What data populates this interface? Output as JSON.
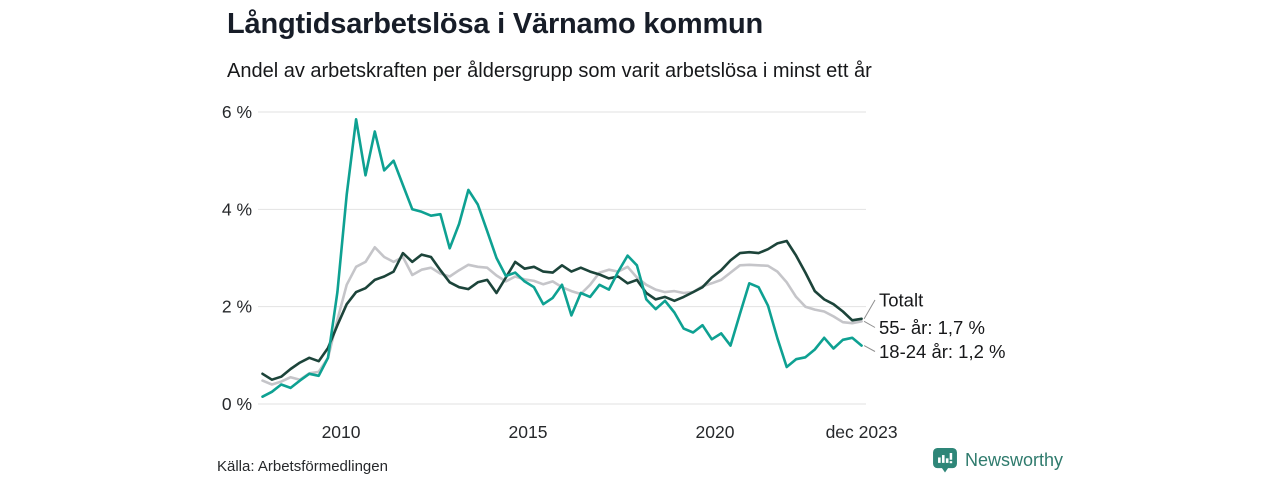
{
  "header": {
    "title": "Långtidsarbetslösa i Värnamo kommun",
    "subtitle": "Andel av arbetskraften per åldersgrupp som varit arbetslösa i minst ett år"
  },
  "footer": {
    "source": "Källa: Arbetsförmedlingen",
    "brand": "Newsworthy"
  },
  "colors": {
    "totalt": "#1c443a",
    "55_ar": "#c5c5c9",
    "18_24_ar": "#0ea192",
    "gridline": "#e2e2e2",
    "brand_teal": "#2e8678",
    "text": "#17181a"
  },
  "chart_data": {
    "type": "line",
    "title": "Långtidsarbetslösa i Värnamo kommun",
    "subtitle": "Andel av arbetskraften per åldersgrupp som varit arbetslösa i minst ett år",
    "x_start": 2007.9,
    "x_end": 2023.92,
    "ylim": [
      0,
      6
    ],
    "grid": "horizontal",
    "legend_position": "end-of-line-annotations",
    "yticks": [
      {
        "value": 0,
        "label": "0 %"
      },
      {
        "value": 2,
        "label": "2 %"
      },
      {
        "value": 4,
        "label": "4 %"
      },
      {
        "value": 6,
        "label": "6 %"
      }
    ],
    "xticks": [
      {
        "value": 2010,
        "label": "2010"
      },
      {
        "value": 2015,
        "label": "2015"
      },
      {
        "value": 2020,
        "label": "2020"
      },
      {
        "value": 2023.92,
        "label": "dec 2023"
      }
    ],
    "series": [
      {
        "name": "55- år",
        "color": "#c5c5c9",
        "values": [
          0.48,
          0.4,
          0.46,
          0.55,
          0.5,
          0.63,
          0.66,
          0.95,
          1.73,
          2.45,
          2.82,
          2.92,
          3.22,
          3.02,
          2.92,
          3.02,
          2.65,
          2.76,
          2.8,
          2.68,
          2.62,
          2.75,
          2.86,
          2.82,
          2.8,
          2.64,
          2.52,
          2.62,
          2.56,
          2.53,
          2.46,
          2.52,
          2.4,
          2.32,
          2.26,
          2.45,
          2.7,
          2.76,
          2.72,
          2.82,
          2.6,
          2.45,
          2.35,
          2.3,
          2.32,
          2.28,
          2.3,
          2.42,
          2.48,
          2.55,
          2.7,
          2.85,
          2.86,
          2.85,
          2.84,
          2.72,
          2.5,
          2.2,
          2.0,
          1.94,
          1.9,
          1.8,
          1.68,
          1.66,
          1.7
        ]
      },
      {
        "name": "Totalt",
        "color": "#1c443a",
        "values": [
          0.62,
          0.5,
          0.56,
          0.72,
          0.85,
          0.95,
          0.88,
          1.15,
          1.62,
          2.05,
          2.3,
          2.38,
          2.55,
          2.62,
          2.72,
          3.1,
          2.92,
          3.07,
          3.02,
          2.75,
          2.5,
          2.4,
          2.36,
          2.5,
          2.55,
          2.28,
          2.6,
          2.92,
          2.78,
          2.82,
          2.72,
          2.7,
          2.85,
          2.72,
          2.8,
          2.72,
          2.66,
          2.58,
          2.62,
          2.48,
          2.55,
          2.28,
          2.15,
          2.2,
          2.12,
          2.2,
          2.3,
          2.4,
          2.6,
          2.75,
          2.95,
          3.1,
          3.12,
          3.1,
          3.18,
          3.3,
          3.35,
          3.05,
          2.7,
          2.32,
          2.15,
          2.05,
          1.9,
          1.72,
          1.75
        ]
      },
      {
        "name": "18-24 år",
        "color": "#0ea192",
        "values": [
          0.15,
          0.25,
          0.4,
          0.33,
          0.48,
          0.62,
          0.58,
          0.95,
          2.3,
          4.3,
          5.85,
          4.7,
          5.6,
          4.8,
          5.0,
          4.5,
          4.0,
          3.95,
          3.87,
          3.9,
          3.2,
          3.7,
          4.4,
          4.1,
          3.55,
          3.0,
          2.63,
          2.7,
          2.52,
          2.4,
          2.05,
          2.18,
          2.45,
          1.82,
          2.28,
          2.2,
          2.45,
          2.35,
          2.72,
          3.05,
          2.85,
          2.15,
          1.95,
          2.12,
          1.88,
          1.55,
          1.47,
          1.62,
          1.33,
          1.45,
          1.2,
          1.85,
          2.48,
          2.4,
          2.02,
          1.35,
          0.76,
          0.92,
          0.96,
          1.12,
          1.36,
          1.14,
          1.32,
          1.36,
          1.2
        ]
      }
    ],
    "annotations": [
      {
        "label": "Totalt",
        "series": "Totalt"
      },
      {
        "label": "55- år: 1,7 %",
        "series": "55- år"
      },
      {
        "label": "18-24 år: 1,2 %",
        "series": "18-24 år"
      }
    ]
  }
}
